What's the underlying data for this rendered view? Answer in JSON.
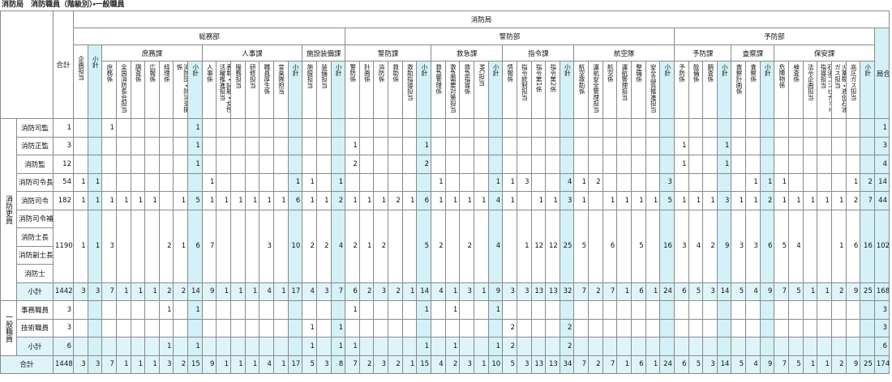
{
  "title": "消防局　消防職員（階級別）・一般職員",
  "header": {
    "total": "合計",
    "bureau": "消防局",
    "grand_total": "局合計",
    "departments": [
      {
        "name": "総務部",
        "sections": [
          {
            "columns": [
              "企画担当",
              "小計"
            ]
          },
          {
            "name": "庶務課",
            "columns": [
              "庶務係",
              "全国消防長会担当",
              "調査係",
              "広報係",
              "経理係",
              "消防団・防災支援係",
              "小計"
            ]
          },
          {
            "name": "人事課",
            "columns": [
              "人事係",
              "表彰・試験・女性活躍推進担当",
              "服務担当",
              "研修担当",
              "職員厚生係",
              "音楽隊担当",
              "小計"
            ]
          },
          {
            "name": "施設装備課",
            "columns": [
              "施設担当",
              "装備担当",
              "小計"
            ]
          }
        ]
      },
      {
        "name": "警防部",
        "sections": [
          {
            "name": "警防課",
            "columns": [
              "警防係",
              "計画係",
              "消防係",
              "救助係",
              "救助指導担当",
              "小計"
            ]
          },
          {
            "name": "救急課",
            "columns": [
              "救急管理係",
              "救急需要対策担当",
              "救急指導係",
              "MC担当",
              "小計"
            ]
          },
          {
            "name": "指令課",
            "columns": [
              "情報係",
              "指令統制担当",
              "指令第1係",
              "指令第2係",
              "小計"
            ]
          },
          {
            "name": "航空隊",
            "columns": [
              "航空救助係",
              "運航安全管理担当",
              "航空係",
              "運航管理担当",
              "整備係",
              "安全品質推進担当",
              "小計"
            ]
          }
        ]
      },
      {
        "name": "予防部",
        "sections": [
          {
            "name": "予防課",
            "columns": [
              "予防係",
              "設備係",
              "調査係",
              "小計"
            ]
          },
          {
            "name": "査察課",
            "columns": [
              "査察計画係",
              "査察係",
              "小計"
            ]
          },
          {
            "name": "保安課",
            "columns": [
              "危険物係",
              "検査係",
              "法令企画担当",
              "石油コンビナート指導担当",
              "火薬類・液化石油ガス担当",
              "高圧ガス担当",
              "小計"
            ]
          }
        ]
      }
    ]
  },
  "groups": [
    {
      "name": "消防吏員",
      "rows": [
        {
          "labels": [
            "消防司監"
          ],
          "values": [
            1,
            null,
            null,
            1,
            null,
            null,
            null,
            null,
            null,
            1,
            null,
            null,
            null,
            null,
            null,
            null,
            null,
            null,
            null,
            null,
            null,
            null,
            null,
            null,
            null,
            null,
            null,
            null,
            null,
            null,
            null,
            null,
            null,
            null,
            null,
            null,
            null,
            null,
            null,
            null,
            null,
            null,
            null,
            null,
            null,
            null,
            null,
            null,
            null,
            null,
            null,
            null,
            null,
            null,
            null,
            null,
            null,
            1
          ]
        },
        {
          "labels": [
            "消防正監"
          ],
          "values": [
            3,
            null,
            null,
            null,
            null,
            null,
            null,
            null,
            null,
            1,
            null,
            null,
            null,
            null,
            null,
            null,
            null,
            null,
            null,
            null,
            1,
            null,
            null,
            null,
            null,
            1,
            null,
            null,
            null,
            null,
            null,
            null,
            null,
            null,
            null,
            null,
            null,
            null,
            null,
            null,
            null,
            null,
            null,
            1,
            null,
            null,
            1,
            null,
            null,
            null,
            null,
            null,
            null,
            null,
            null,
            null,
            null,
            3
          ]
        },
        {
          "labels": [
            "消防監"
          ],
          "values": [
            12,
            null,
            null,
            null,
            null,
            null,
            null,
            null,
            null,
            1,
            null,
            null,
            null,
            null,
            null,
            null,
            null,
            null,
            null,
            null,
            2,
            null,
            null,
            null,
            null,
            2,
            null,
            null,
            null,
            null,
            null,
            null,
            null,
            null,
            null,
            null,
            null,
            null,
            null,
            null,
            null,
            null,
            null,
            1,
            null,
            null,
            1,
            null,
            null,
            null,
            null,
            null,
            null,
            null,
            null,
            null,
            null,
            4
          ]
        },
        {
          "labels": [
            "消防司令長"
          ],
          "values": [
            54,
            1,
            1,
            null,
            null,
            null,
            null,
            null,
            null,
            null,
            1,
            null,
            null,
            null,
            null,
            null,
            1,
            1,
            null,
            1,
            null,
            null,
            null,
            null,
            null,
            null,
            1,
            null,
            null,
            null,
            1,
            1,
            3,
            null,
            null,
            4,
            1,
            2,
            null,
            null,
            null,
            null,
            3,
            null,
            null,
            null,
            null,
            null,
            1,
            1,
            1,
            null,
            null,
            null,
            null,
            1,
            2,
            14
          ]
        },
        {
          "labels": [
            "消防司令"
          ],
          "values": [
            182,
            1,
            1,
            1,
            1,
            1,
            1,
            null,
            1,
            5,
            1,
            1,
            1,
            1,
            1,
            1,
            6,
            1,
            1,
            2,
            1,
            1,
            1,
            2,
            1,
            6,
            1,
            1,
            1,
            1,
            4,
            1,
            null,
            1,
            1,
            3,
            1,
            null,
            1,
            1,
            1,
            1,
            5,
            1,
            1,
            1,
            3,
            1,
            1,
            2,
            1,
            1,
            1,
            1,
            1,
            2,
            7,
            44
          ]
        },
        {
          "labels": [
            "消防司令補",
            "消防士長",
            "消防副士長",
            "消防士"
          ],
          "values": [
            1190,
            1,
            1,
            3,
            null,
            null,
            null,
            2,
            1,
            6,
            7,
            null,
            null,
            null,
            3,
            null,
            10,
            2,
            2,
            4,
            2,
            1,
            2,
            null,
            null,
            5,
            2,
            null,
            2,
            null,
            4,
            null,
            1,
            12,
            12,
            25,
            5,
            null,
            6,
            null,
            5,
            null,
            16,
            3,
            4,
            2,
            9,
            3,
            3,
            6,
            5,
            4,
            null,
            null,
            1,
            6,
            16,
            102
          ]
        },
        {
          "labels": [
            "小計"
          ],
          "values": [
            1442,
            3,
            3,
            7,
            1,
            1,
            1,
            2,
            2,
            14,
            9,
            1,
            1,
            1,
            4,
            1,
            17,
            4,
            3,
            7,
            6,
            2,
            3,
            2,
            1,
            14,
            4,
            1,
            3,
            1,
            9,
            3,
            3,
            13,
            13,
            32,
            7,
            2,
            7,
            1,
            6,
            1,
            24,
            6,
            5,
            3,
            14,
            5,
            4,
            9,
            7,
            5,
            1,
            1,
            2,
            9,
            25,
            168
          ]
        }
      ]
    },
    {
      "name": "一般職員",
      "rows": [
        {
          "labels": [
            "事務職員"
          ],
          "values": [
            3,
            null,
            null,
            null,
            null,
            null,
            null,
            1,
            null,
            1,
            null,
            null,
            null,
            null,
            null,
            null,
            null,
            null,
            null,
            null,
            1,
            null,
            null,
            null,
            null,
            1,
            null,
            1,
            null,
            null,
            1,
            null,
            null,
            null,
            null,
            null,
            null,
            null,
            null,
            null,
            null,
            null,
            null,
            null,
            null,
            null,
            null,
            null,
            null,
            null,
            null,
            null,
            null,
            null,
            null,
            null,
            null,
            3
          ]
        },
        {
          "labels": [
            "技術職員"
          ],
          "values": [
            3,
            null,
            null,
            null,
            null,
            null,
            null,
            null,
            null,
            null,
            null,
            null,
            null,
            null,
            null,
            null,
            null,
            1,
            null,
            1,
            null,
            null,
            null,
            null,
            null,
            null,
            null,
            null,
            null,
            null,
            null,
            2,
            null,
            null,
            null,
            2,
            null,
            null,
            null,
            null,
            null,
            null,
            null,
            null,
            null,
            null,
            null,
            null,
            null,
            null,
            null,
            null,
            null,
            null,
            null,
            null,
            null,
            3
          ]
        },
        {
          "labels": [
            "小計"
          ],
          "values": [
            6,
            null,
            null,
            null,
            null,
            null,
            null,
            1,
            null,
            1,
            null,
            null,
            null,
            null,
            null,
            null,
            null,
            1,
            null,
            1,
            1,
            null,
            null,
            null,
            null,
            1,
            null,
            1,
            null,
            null,
            1,
            2,
            null,
            null,
            null,
            2,
            null,
            null,
            null,
            null,
            null,
            null,
            null,
            null,
            null,
            null,
            null,
            null,
            null,
            null,
            null,
            null,
            null,
            null,
            null,
            null,
            null,
            6
          ]
        }
      ]
    }
  ],
  "total": {
    "label": "合計",
    "values": [
      1448,
      3,
      3,
      7,
      1,
      1,
      1,
      3,
      2,
      15,
      9,
      1,
      1,
      1,
      4,
      1,
      17,
      5,
      3,
      8,
      7,
      2,
      3,
      2,
      1,
      15,
      4,
      2,
      3,
      1,
      10,
      5,
      3,
      13,
      13,
      34,
      7,
      2,
      7,
      1,
      6,
      1,
      24,
      6,
      5,
      3,
      14,
      5,
      4,
      9,
      7,
      5,
      1,
      1,
      2,
      9,
      25,
      174
    ]
  }
}
